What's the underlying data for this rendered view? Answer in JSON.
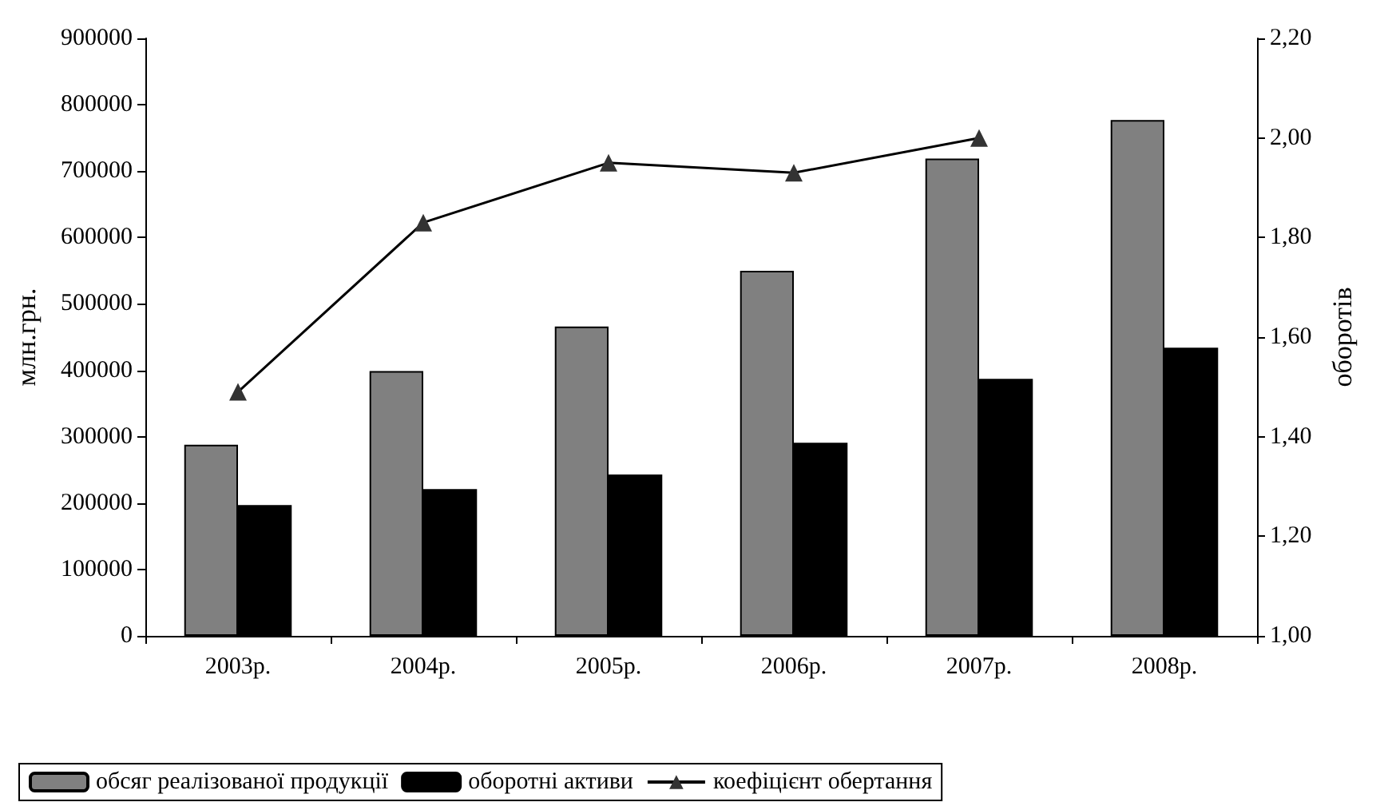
{
  "chart_data": {
    "type": "bar",
    "ylabel": "млн.грн.",
    "y2label": "оборотів",
    "categories": [
      "2003р.",
      "2004р.",
      "2005р.",
      "2006р.",
      "2007р.",
      "2008р."
    ],
    "series": [
      {
        "name": "обсяг реалізованої продукції",
        "color": "#808080",
        "values": [
          288000,
          399000,
          466000,
          550000,
          719000,
          777000
        ]
      },
      {
        "name": "оборотні активи",
        "color": "#000000",
        "values": [
          197000,
          221000,
          243000,
          291000,
          387000,
          434000
        ]
      },
      {
        "name": "коефіцієнт обертання",
        "type": "line",
        "axis": "y2",
        "color": "#000000",
        "marker": "triangle",
        "values": [
          1.49,
          1.83,
          1.95,
          1.93,
          2.0,
          null
        ]
      }
    ],
    "ylim": [
      0,
      900000
    ],
    "yticks": [
      0,
      100000,
      200000,
      300000,
      400000,
      500000,
      600000,
      700000,
      800000,
      900000
    ],
    "y2lim": [
      1,
      2.2
    ],
    "y2ticks": [
      {
        "value": 1,
        "label": "1,00"
      },
      {
        "value": 1.2,
        "label": "1,20"
      },
      {
        "value": 1.4,
        "label": "1,40"
      },
      {
        "value": 1.6,
        "label": "1,60"
      },
      {
        "value": 1.8,
        "label": "1,80"
      },
      {
        "value": 2,
        "label": "2,00"
      },
      {
        "value": 2.2,
        "label": "2,20"
      }
    ],
    "grid": false,
    "legend": "bottom"
  }
}
